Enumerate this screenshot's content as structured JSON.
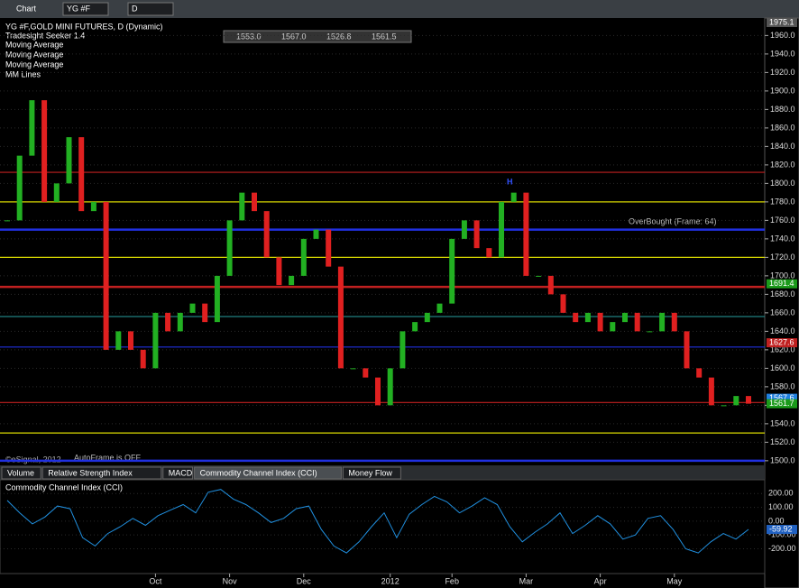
{
  "toolbar": {
    "app": "Chart",
    "symbol": "YG #F",
    "interval": "D"
  },
  "tabs": [
    "Volume",
    "Relative Strength Index",
    "MACD",
    "Commodity Channel Index (CCI)",
    "Money Flow"
  ],
  "chart_data": [
    {
      "type": "candlestick",
      "title": "YG #F,GOLD MINI FUTURES, D (Dynamic)",
      "studies": [
        "Tradesight Seeker 1.4",
        "Moving Average",
        "Moving Average",
        "Moving Average",
        "MM Lines"
      ],
      "ohlc_box": [
        "1553.0",
        "1567.0",
        "1526.8",
        "1561.5"
      ],
      "annotations": {
        "overbought": "OverBought (Frame: 64)",
        "autoframe": "AutoFrame is OFF",
        "copyright": "©eSignal, 2012",
        "high_marker": "H",
        "top_value": "1975.1"
      },
      "categories": [
        null,
        null,
        null,
        null,
        null,
        null,
        null,
        null,
        null,
        null,
        null,
        null,
        "Oct",
        null,
        null,
        null,
        null,
        null,
        "Nov",
        null,
        null,
        null,
        null,
        null,
        "Dec",
        null,
        null,
        null,
        null,
        null,
        null,
        "2012",
        null,
        null,
        null,
        null,
        "Feb",
        null,
        null,
        null,
        null,
        null,
        "Mar",
        null,
        null,
        null,
        null,
        null,
        "Apr",
        null,
        null,
        null,
        null,
        null,
        "May",
        null,
        null,
        null,
        null,
        null,
        null
      ],
      "values": [
        1760,
        1830,
        1890,
        1780,
        1800,
        1850,
        1770,
        1780,
        1620,
        1640,
        1620,
        1600,
        1660,
        1640,
        1660,
        1670,
        1650,
        1700,
        1760,
        1790,
        1770,
        1720,
        1690,
        1700,
        1740,
        1750,
        1710,
        1600,
        1600,
        1590,
        1560,
        1600,
        1640,
        1650,
        1660,
        1670,
        1740,
        1760,
        1730,
        1720,
        1780,
        1790,
        1700,
        1700,
        1680,
        1660,
        1650,
        1660,
        1640,
        1650,
        1660,
        1640,
        1640,
        1660,
        1640,
        1600,
        1590,
        1560,
        1560,
        1570,
        1561.7
      ],
      "up_color": "#22b022",
      "down_color": "#e02020",
      "levels": [
        {
          "value": 1812,
          "color": "#c02020"
        },
        {
          "value": 1780,
          "color": "#d8d800"
        },
        {
          "value": 1750,
          "color": "#2030e0"
        },
        {
          "value": 1720,
          "color": "#d8d800"
        },
        {
          "value": 1688,
          "color": "#c02020"
        },
        {
          "value": 1656,
          "color": "#208080"
        },
        {
          "value": 1623,
          "color": "#2030e0"
        },
        {
          "value": 1563,
          "color": "#c02020"
        },
        {
          "value": 1530,
          "color": "#d8d800"
        },
        {
          "value": 1500,
          "color": "#2030e0"
        }
      ],
      "price_tags": [
        {
          "value": 1691.4,
          "color": "#1a9a1a"
        },
        {
          "value": 1627.6,
          "color": "#c02020"
        },
        {
          "value": 1567.6,
          "color": "#2080e0"
        },
        {
          "value": 1561.7,
          "color": "#1a9a1a"
        }
      ],
      "ylim": [
        1495,
        1975
      ],
      "yticks": [
        {
          "value": 1500,
          "label": "1500.0"
        },
        {
          "value": 1520,
          "label": "1520.0"
        },
        {
          "value": 1540,
          "label": "1540.0"
        },
        {
          "value": 1560,
          "label": "1560.0"
        },
        {
          "value": 1580,
          "label": "1580.0"
        },
        {
          "value": 1600,
          "label": "1600.0"
        },
        {
          "value": 1620,
          "label": "1620.0"
        },
        {
          "value": 1640,
          "label": "1640.0"
        },
        {
          "value": 1660,
          "label": "1660.0"
        },
        {
          "value": 1680,
          "label": "1680.0"
        },
        {
          "value": 1700,
          "label": "1700.0"
        },
        {
          "value": 1720,
          "label": "1720.0"
        },
        {
          "value": 1740,
          "label": "1740.0"
        },
        {
          "value": 1760,
          "label": "1760.0"
        },
        {
          "value": 1780,
          "label": "1780.0"
        },
        {
          "value": 1800,
          "label": "1800.0"
        },
        {
          "value": 1820,
          "label": "1820.0"
        },
        {
          "value": 1840,
          "label": "1840.0"
        },
        {
          "value": 1860,
          "label": "1860.0"
        },
        {
          "value": 1880,
          "label": "1880.0"
        },
        {
          "value": 1900,
          "label": "1900.0"
        },
        {
          "value": 1920,
          "label": "1920.0"
        },
        {
          "value": 1940,
          "label": "1940.0"
        },
        {
          "value": 1960,
          "label": "1960.0"
        }
      ]
    },
    {
      "type": "line",
      "title": "Commodity Channel Index (CCI)",
      "color": "#2090e0",
      "values": [
        150,
        60,
        -20,
        30,
        110,
        90,
        -120,
        -180,
        -90,
        -40,
        20,
        -30,
        40,
        80,
        120,
        60,
        210,
        230,
        160,
        120,
        60,
        -10,
        20,
        90,
        110,
        -60,
        -180,
        -230,
        -150,
        -40,
        60,
        -120,
        50,
        120,
        180,
        140,
        60,
        110,
        170,
        120,
        -40,
        -150,
        -80,
        -20,
        60,
        -90,
        -30,
        40,
        -20,
        -130,
        -100,
        20,
        40,
        -60,
        -200,
        -230,
        -150,
        -90,
        -130,
        -59.92
      ],
      "value_labels": {
        "last": "-59.92"
      },
      "ylim": [
        -380,
        300
      ],
      "yticks": [
        {
          "value": 200,
          "label": "200.00"
        },
        {
          "value": 100,
          "label": "100.00"
        },
        {
          "value": 0,
          "label": "0.00"
        },
        {
          "value": -100,
          "label": "-100.00"
        },
        {
          "value": -200,
          "label": "-200.00"
        }
      ]
    }
  ]
}
